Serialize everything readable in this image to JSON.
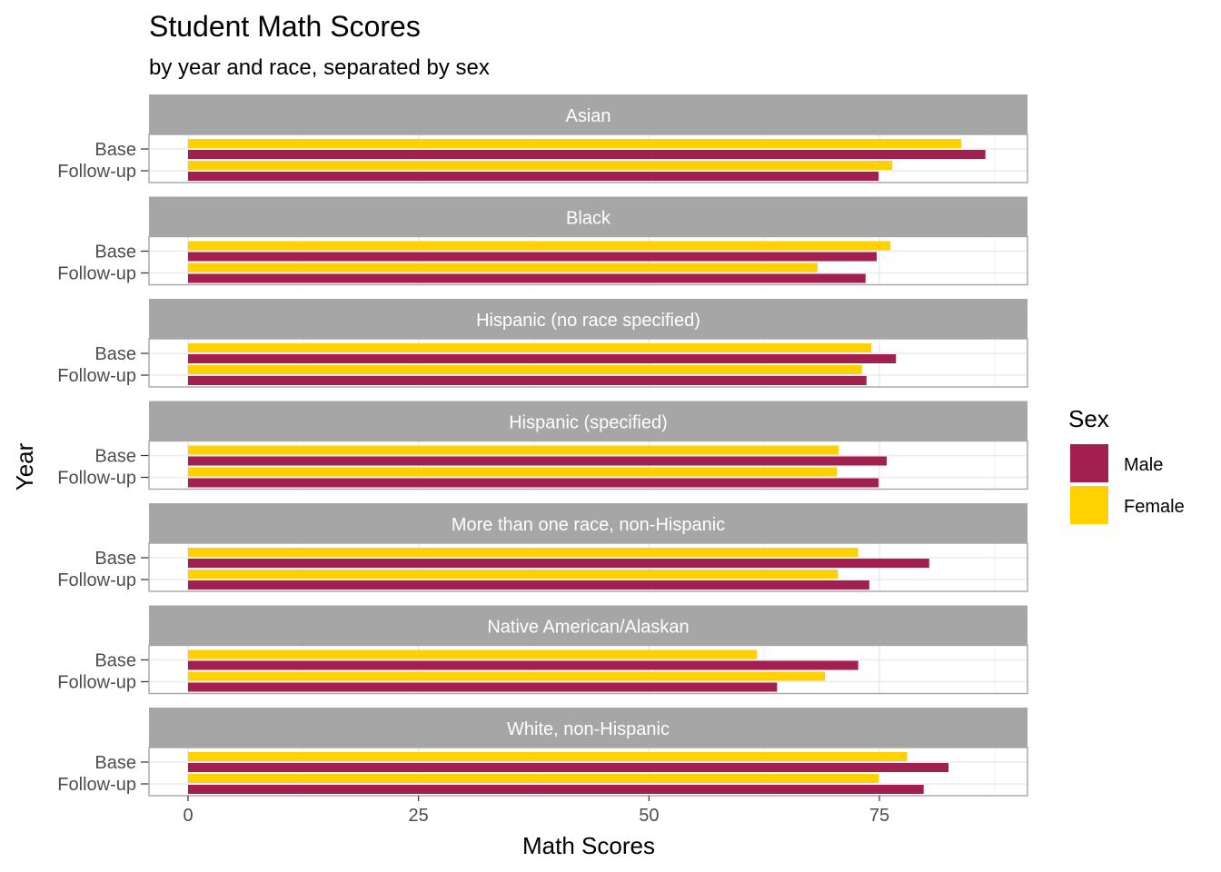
{
  "chart_data": {
    "type": "bar",
    "orientation": "horizontal",
    "title": "Student Math Scores",
    "subtitle": "by year and race, separated by sex",
    "xlabel": "Math Scores",
    "ylabel": "Year",
    "xlim": [
      0,
      91
    ],
    "xticks": [
      0,
      25,
      50,
      75
    ],
    "grid": true,
    "legend": {
      "title": "Sex",
      "position": "right",
      "entries": [
        {
          "name": "Male",
          "color": "#A21F50"
        },
        {
          "name": "Female",
          "color": "#FFD100"
        }
      ]
    },
    "years": [
      "Base",
      "Follow-up"
    ],
    "panels": [
      {
        "facet": "Asian",
        "values": {
          "Base": {
            "Male": 86.5,
            "Female": 83.9
          },
          "Follow-up": {
            "Male": 74.9,
            "Female": 76.4
          }
        }
      },
      {
        "facet": "Black",
        "values": {
          "Base": {
            "Male": 74.7,
            "Female": 76.2
          },
          "Follow-up": {
            "Male": 73.5,
            "Female": 68.3
          }
        }
      },
      {
        "facet": "Hispanic (no race specified)",
        "values": {
          "Base": {
            "Male": 76.8,
            "Female": 74.1
          },
          "Follow-up": {
            "Male": 73.6,
            "Female": 73.1
          }
        }
      },
      {
        "facet": "Hispanic (specified)",
        "values": {
          "Base": {
            "Male": 75.8,
            "Female": 70.6
          },
          "Follow-up": {
            "Male": 74.9,
            "Female": 70.4
          }
        }
      },
      {
        "facet": "More than one race, non-Hispanic",
        "values": {
          "Base": {
            "Male": 80.4,
            "Female": 72.7
          },
          "Follow-up": {
            "Male": 73.9,
            "Female": 70.5
          }
        }
      },
      {
        "facet": "Native American/Alaskan",
        "values": {
          "Base": {
            "Male": 72.7,
            "Female": 61.7
          },
          "Follow-up": {
            "Male": 63.9,
            "Female": 69.1
          }
        }
      },
      {
        "facet": "White, non-Hispanic",
        "values": {
          "Base": {
            "Male": 82.5,
            "Female": 78.0
          },
          "Follow-up": {
            "Male": 79.8,
            "Female": 74.9
          }
        }
      }
    ]
  }
}
